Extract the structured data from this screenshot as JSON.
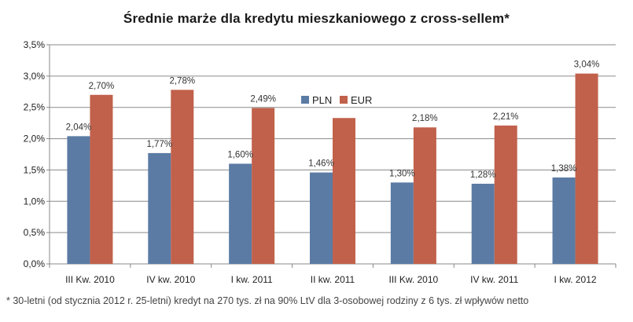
{
  "chart_data": {
    "type": "bar",
    "title": "Średnie marże dla kredytu mieszkaniowego z cross-sellem*",
    "categories": [
      "III Kw. 2010",
      "IV kw. 2010",
      "I kw. 2011",
      "II kw. 2011",
      "III Kw. 2010",
      "IV kw. 2011",
      "I kw. 2012"
    ],
    "series": [
      {
        "name": "PLN",
        "color": "#5b7ba4",
        "values": [
          2.04,
          1.77,
          1.6,
          1.46,
          1.3,
          1.28,
          1.38
        ],
        "labels": [
          "2,04%",
          "1,77%",
          "1,60%",
          "1,46%",
          "1,30%",
          "1,28%",
          "1,38%"
        ]
      },
      {
        "name": "EUR",
        "color": "#c1614b",
        "values": [
          2.7,
          2.78,
          2.49,
          2.33,
          2.18,
          2.21,
          3.04
        ],
        "labels": [
          "2,70%",
          "2,78%",
          "2,49%",
          "",
          "2,18%",
          "2,21%",
          "3,04%"
        ]
      }
    ],
    "ylim": [
      0,
      3.5
    ],
    "yticks": [
      0,
      0.5,
      1.0,
      1.5,
      2.0,
      2.5,
      3.0,
      3.5
    ],
    "ytick_labels": [
      "0,0%",
      "0,5%",
      "1,0%",
      "1,5%",
      "2,0%",
      "2,5%",
      "3,0%",
      "3,5%"
    ],
    "grid": true,
    "legend_position": "top-center",
    "xlabel": "",
    "ylabel": ""
  },
  "footnote": "* 30-letni (od stycznia 2012 r. 25-letni) kredyt na 270 tys. zł na 90% LtV dla 3-osobowej rodziny z 6 tys. zł wpływów netto"
}
